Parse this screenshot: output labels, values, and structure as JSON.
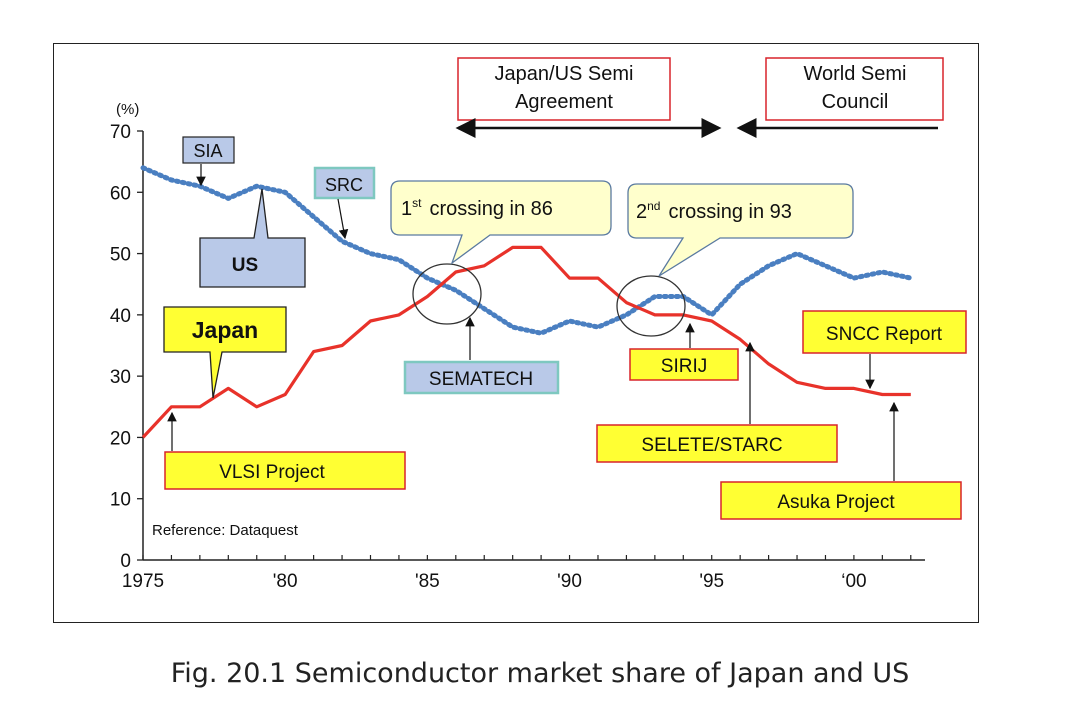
{
  "caption": "Fig. 20.1 Semiconductor market share of Japan and US",
  "chart_data": {
    "type": "line",
    "ylabel_unit": "(%)",
    "ylim": [
      0,
      70
    ],
    "yticks": [
      "0",
      "10",
      "20",
      "30",
      "40",
      "50",
      "60",
      "70"
    ],
    "yticks_values": [
      0,
      10,
      20,
      30,
      40,
      50,
      60,
      70
    ],
    "xlim": [
      1975,
      2002.5
    ],
    "xticks": [
      {
        "year": 1975,
        "label": "1975"
      },
      {
        "year": 1980,
        "label": "'80"
      },
      {
        "year": 1985,
        "label": "'85"
      },
      {
        "year": 1990,
        "label": "'90"
      },
      {
        "year": 1995,
        "label": "'95"
      },
      {
        "year": 2000,
        "label": "‘00"
      }
    ],
    "grid": false,
    "reference": "Reference: Dataquest",
    "series": [
      {
        "name": "Japan",
        "color": "#e8322a",
        "style": "solid",
        "x": [
          1975,
          1976,
          1977,
          1978,
          1979,
          1980,
          1981,
          1982,
          1983,
          1984,
          1985,
          1986,
          1987,
          1988,
          1989,
          1990,
          1991,
          1992,
          1993,
          1994,
          1995,
          1996,
          1997,
          1998,
          1999,
          2000,
          2001,
          2002
        ],
        "y": [
          20,
          25,
          25,
          28,
          25,
          27,
          34,
          35,
          39,
          40,
          43,
          47,
          48,
          51,
          51,
          46,
          46,
          42,
          40,
          40,
          39,
          36,
          32,
          29,
          28,
          28,
          27,
          27
        ]
      },
      {
        "name": "US",
        "color": "#4a7fc1",
        "style": "dotted",
        "x": [
          1975,
          1976,
          1977,
          1978,
          1979,
          1980,
          1981,
          1982,
          1983,
          1984,
          1985,
          1986,
          1987,
          1988,
          1989,
          1990,
          1991,
          1992,
          1993,
          1994,
          1995,
          1996,
          1997,
          1998,
          1999,
          2000,
          2001,
          2002
        ],
        "y": [
          64,
          62,
          61,
          59,
          61,
          60,
          56,
          52,
          50,
          49,
          46,
          44,
          41,
          38,
          37,
          39,
          38,
          40,
          43,
          43,
          40,
          45,
          48,
          50,
          48,
          46,
          47,
          46
        ]
      }
    ],
    "annotations": {
      "sia": "SIA",
      "src": "SRC",
      "us": "US",
      "japan": "Japan",
      "sematech": "SEMATECH",
      "vlsi": "VLSI Project",
      "sirij": "SIRIJ",
      "selete": "SELETE/STARC",
      "sncc": "SNCC Report",
      "asuka": "Asuka Project",
      "agreement_line1": "Japan/US Semi",
      "agreement_line2": "Agreement",
      "council_line1": "World Semi",
      "council_line2": "Council",
      "crossing1_sup": "st",
      "crossing1_pre": "1",
      "crossing1_rest": "crossing in 86",
      "crossing2_pre": "2",
      "crossing2_sup": "nd",
      "crossing2_rest": "crossing in 93"
    }
  }
}
